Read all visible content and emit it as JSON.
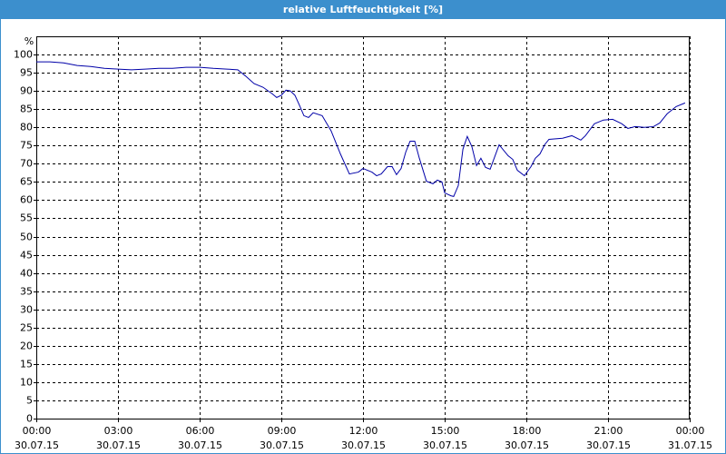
{
  "chart_data": {
    "type": "line",
    "title": "relative Luftfeuchtigkeit [%]",
    "y_label": "%",
    "x": [
      0,
      0.5,
      1,
      1.5,
      2,
      2.5,
      3,
      3.5,
      4,
      4.5,
      5,
      5.5,
      6,
      6.5,
      7,
      7.4,
      7.67,
      8,
      8.33,
      8.67,
      8.83,
      9,
      9.17,
      9.33,
      9.5,
      9.67,
      9.83,
      10,
      10.17,
      10.5,
      10.83,
      11.17,
      11.5,
      11.83,
      12,
      12.33,
      12.5,
      12.67,
      12.9,
      13.07,
      13.23,
      13.4,
      13.57,
      13.73,
      13.9,
      14.07,
      14.33,
      14.57,
      14.73,
      14.9,
      15,
      15.23,
      15.33,
      15.5,
      15.67,
      15.83,
      16,
      16.17,
      16.33,
      16.5,
      16.67,
      17,
      17.33,
      17.5,
      17.67,
      17.93,
      18.17,
      18.33,
      18.5,
      18.67,
      18.83,
      19.33,
      19.67,
      20,
      20.17,
      20.5,
      20.83,
      21.17,
      21.5,
      21.73,
      22,
      22.33,
      22.67,
      22.9,
      23.17,
      23.5,
      23.83
    ],
    "series": [
      {
        "color": "#0000a8",
        "values": [
          98,
          98,
          97.7,
          97,
          96.7,
          96.2,
          96,
          95.8,
          96,
          96.2,
          96.2,
          96.5,
          96.5,
          96.2,
          96,
          95.8,
          94.2,
          92,
          91,
          89.2,
          88.2,
          88.8,
          90.2,
          90,
          88.8,
          86,
          83.2,
          82.7,
          84,
          83.2,
          79,
          72.7,
          67.2,
          67.7,
          68.7,
          67.7,
          66.7,
          67.2,
          69.2,
          69.2,
          67,
          68.7,
          73.2,
          76.2,
          76.2,
          71.5,
          65.2,
          64.5,
          65.5,
          65,
          62,
          61.2,
          61,
          64,
          74,
          77.5,
          74.7,
          69.5,
          71.5,
          69,
          68.5,
          75.2,
          72.2,
          71.2,
          68.2,
          66.7,
          69.2,
          71.5,
          72.7,
          75.2,
          76.7,
          77,
          77.7,
          76.5,
          77.7,
          81,
          82,
          82.2,
          81,
          79.7,
          80.2,
          80,
          80.2,
          81.2,
          83.7,
          85.7,
          86.7
        ]
      }
    ],
    "xlim": [
      0,
      24
    ],
    "xticks": [
      {
        "value": 0,
        "label": "00:00"
      },
      {
        "value": 3,
        "label": "03:00"
      },
      {
        "value": 6,
        "label": "06:00"
      },
      {
        "value": 9,
        "label": "09:00"
      },
      {
        "value": 12,
        "label": "12:00"
      },
      {
        "value": 15,
        "label": "15:00"
      },
      {
        "value": 18,
        "label": "18:00"
      },
      {
        "value": 21,
        "label": "21:00"
      },
      {
        "value": 24,
        "label": "00:00"
      }
    ],
    "xtick_dates": [
      "30.07.15",
      "30.07.15",
      "30.07.15",
      "30.07.15",
      "30.07.15",
      "30.07.15",
      "30.07.15",
      "30.07.15",
      "31.07.15"
    ],
    "ylim": [
      0,
      105
    ],
    "yticks": [
      0,
      5,
      10,
      15,
      20,
      25,
      30,
      35,
      40,
      45,
      50,
      55,
      60,
      65,
      70,
      75,
      80,
      85,
      90,
      95,
      100
    ],
    "grid": true
  }
}
